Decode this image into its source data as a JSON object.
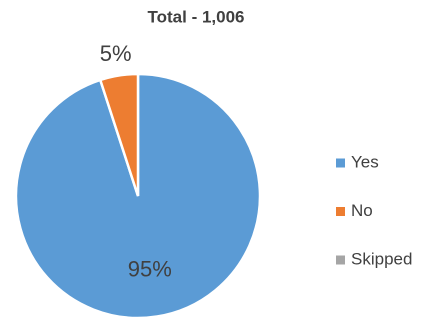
{
  "chart_data": {
    "type": "pie",
    "title": "Total - 1,006",
    "categories": [
      "Yes",
      "No",
      "Skipped"
    ],
    "values": [
      95,
      5,
      0
    ],
    "value_labels": [
      "95%",
      "5%",
      null
    ],
    "colors": [
      "#5b9bd5",
      "#ed7d31",
      "#a5a5a5"
    ],
    "legend": "right"
  }
}
